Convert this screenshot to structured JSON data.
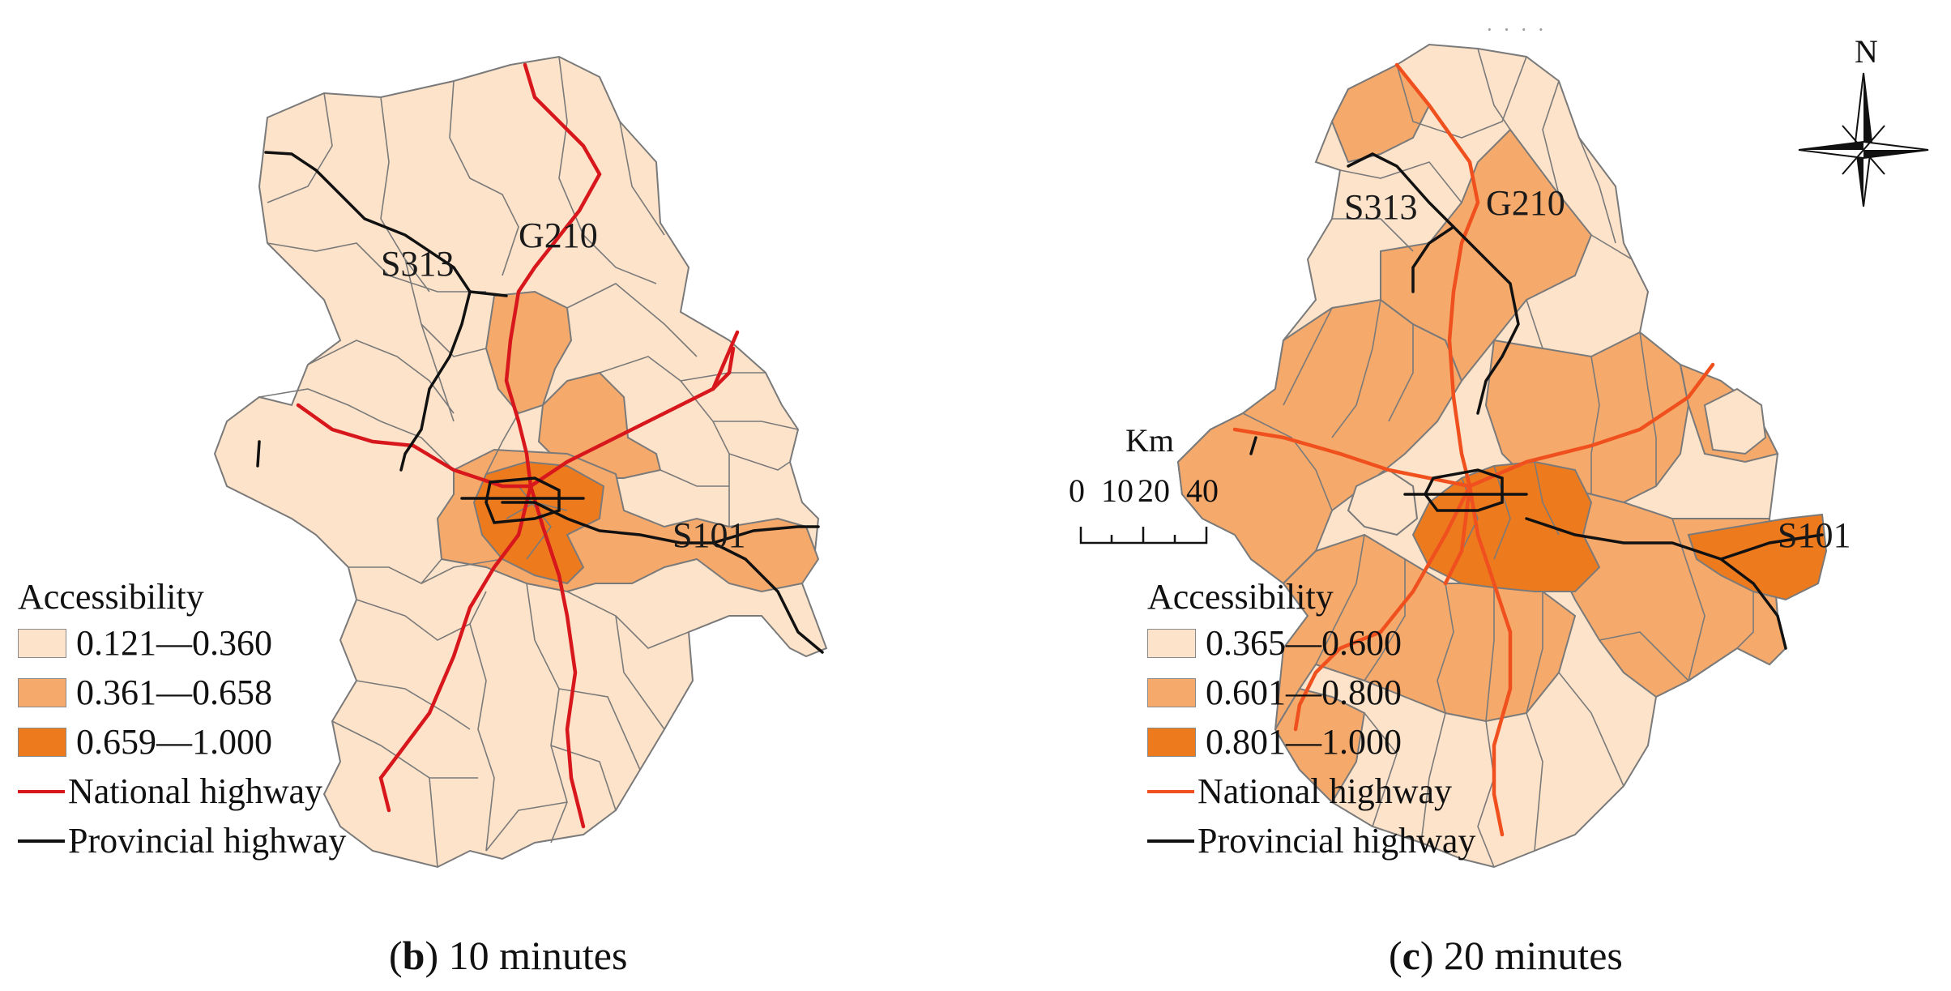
{
  "colors": {
    "class_low": "#fde3c9",
    "class_mid": "#f5a96b",
    "class_high": "#ee7a1e",
    "boundary": "#7a7a7a",
    "national_highway": "#d8171d",
    "national_highway_c": "#f0501e",
    "provincial_highway": "#111111"
  },
  "panel_b": {
    "caption_letter": "b",
    "caption_rest": " 10 minutes",
    "road_labels": {
      "g210": "G210",
      "s313": "S313",
      "s101": "S101"
    },
    "legend": {
      "title": "Accessibility",
      "classes": [
        {
          "label": "0.121—0.360",
          "color_key": "class_low"
        },
        {
          "label": "0.361—0.658",
          "color_key": "class_mid"
        },
        {
          "label": "0.659—1.000",
          "color_key": "class_high"
        }
      ],
      "national": "National highway",
      "provincial": "Provincial highway"
    }
  },
  "panel_c": {
    "caption_letter": "c",
    "caption_rest": " 20 minutes",
    "road_labels": {
      "g210": "G210",
      "s313": "S313",
      "s101": "S101"
    },
    "north_label": "N",
    "top_faint_text": "· · · ·",
    "scale_bar": {
      "unit": "Km",
      "ticks": [
        "0",
        "10",
        "20",
        "40"
      ]
    },
    "legend": {
      "title": "Accessibility",
      "classes": [
        {
          "label": "0.365—0.600",
          "color_key": "class_low"
        },
        {
          "label": "0.601—0.800",
          "color_key": "class_mid"
        },
        {
          "label": "0.801—1.000",
          "color_key": "class_high"
        }
      ],
      "national": "National highway",
      "provincial": "Provincial highway"
    }
  }
}
